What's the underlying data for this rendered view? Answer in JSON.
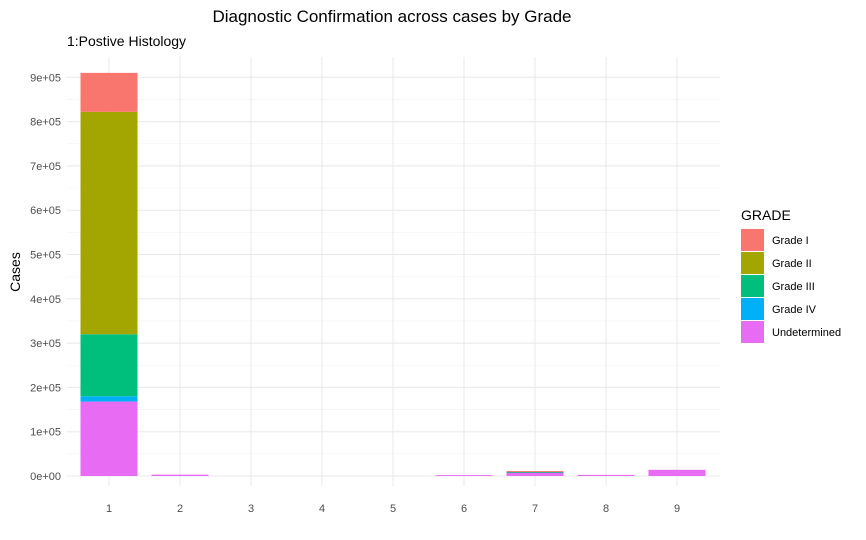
{
  "chart_data": {
    "type": "bar",
    "stacked": true,
    "title": "Diagnostic Confirmation across cases by Grade",
    "subtitle": "1:Postive Histology",
    "xlabel": "",
    "ylabel": "Cases",
    "ylim": [
      0,
      910000
    ],
    "yticks": [
      "0e+00",
      "1e+05",
      "2e+05",
      "3e+05",
      "4e+05",
      "5e+05",
      "6e+05",
      "7e+05",
      "8e+05",
      "9e+05"
    ],
    "categories": [
      "1",
      "2",
      "3",
      "4",
      "5",
      "6",
      "7",
      "8",
      "9"
    ],
    "legend": {
      "title": "GRADE",
      "position": "right"
    },
    "grid": true,
    "series": [
      {
        "name": "Undetermined",
        "color": "#E76BF3",
        "values": [
          168000,
          3000,
          0,
          0,
          0,
          2000,
          8000,
          2500,
          14000
        ]
      },
      {
        "name": "Grade IV",
        "color": "#00B0F6",
        "values": [
          12000,
          0,
          0,
          0,
          0,
          0,
          1000,
          0,
          0
        ]
      },
      {
        "name": "Grade III",
        "color": "#00BF7D",
        "values": [
          140000,
          0,
          0,
          0,
          0,
          0,
          500,
          0,
          0
        ]
      },
      {
        "name": "Grade II",
        "color": "#A3A500",
        "values": [
          502000,
          0,
          0,
          0,
          0,
          0,
          1000,
          0,
          0
        ]
      },
      {
        "name": "Grade I",
        "color": "#F8766D",
        "values": [
          88000,
          0,
          0,
          0,
          0,
          0,
          500,
          0,
          0
        ]
      }
    ],
    "legend_order": [
      "Grade I",
      "Grade II",
      "Grade III",
      "Grade IV",
      "Undetermined"
    ]
  }
}
